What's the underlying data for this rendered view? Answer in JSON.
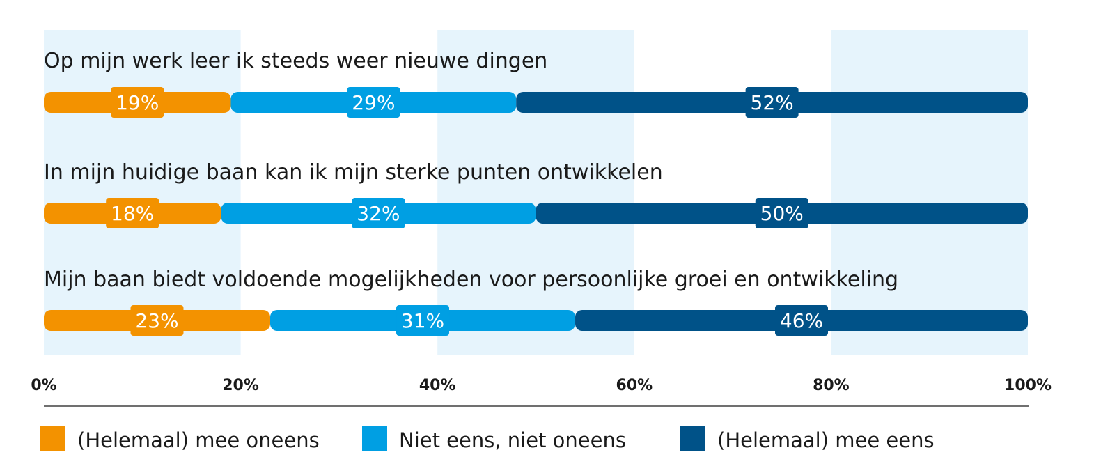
{
  "chart_data": {
    "type": "bar",
    "orientation": "horizontal",
    "stacked": true,
    "categories": [
      "Op mijn werk leer ik steeds weer nieuwe dingen",
      "In mijn huidige baan kan ik mijn sterke punten ontwikkelen",
      "Mijn baan biedt voldoende mogelijkheden voor persoonlijke groei en ontwikkeling"
    ],
    "series": [
      {
        "name": "(Helemaal) mee oneens",
        "values": [
          19,
          18,
          23
        ],
        "labels": [
          "19%",
          "18%",
          "23%"
        ],
        "color": "#f39200"
      },
      {
        "name": "Niet eens, niet oneens",
        "values": [
          29,
          32,
          31
        ],
        "labels": [
          "29%",
          "32%",
          "31%"
        ],
        "color": "#009fe3"
      },
      {
        "name": "(Helemaal) mee eens",
        "values": [
          52,
          50,
          46
        ],
        "labels": [
          "52%",
          "50%",
          "46%"
        ],
        "color": "#005288"
      }
    ],
    "xlim": [
      0,
      100
    ],
    "xticks": [
      0,
      20,
      40,
      60,
      80,
      100
    ],
    "xtick_labels": [
      "0%",
      "20%",
      "40%",
      "60%",
      "80%",
      "100%"
    ],
    "band_color": "#e6f4fc",
    "legend_position": "bottom"
  }
}
